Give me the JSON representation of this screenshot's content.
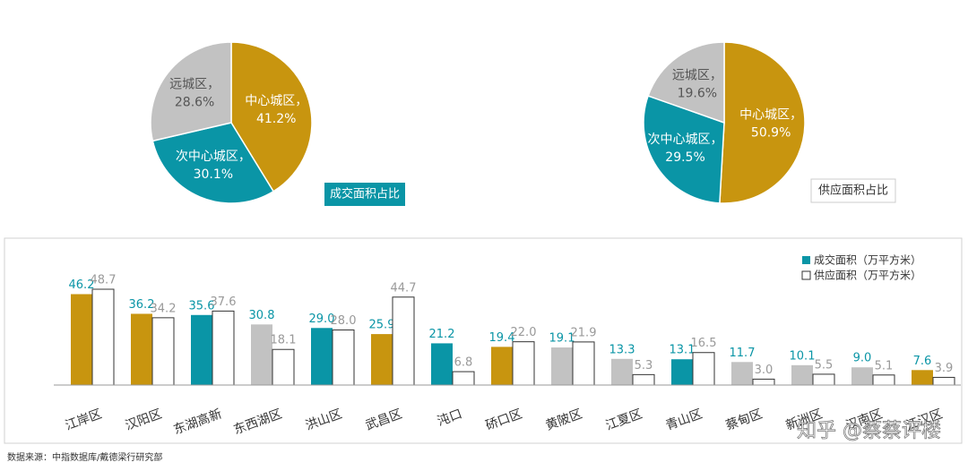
{
  "chart_data": [
    {
      "type": "pie",
      "title": "成交面积占比",
      "categories": [
        "中心城区，",
        "次中心城区，",
        "远城区，"
      ],
      "values": [
        41.2,
        30.1,
        28.6
      ],
      "value_labels": [
        "41.2%",
        "30.1%",
        "28.6%"
      ],
      "colors": [
        "#c8950f",
        "#0a95a6",
        "#c2c2c2"
      ]
    },
    {
      "type": "pie",
      "title": "供应面积占比",
      "categories": [
        "中心城区，",
        "次中心城区，",
        "远城区，"
      ],
      "values": [
        50.9,
        29.5,
        19.6
      ],
      "value_labels": [
        "50.9%",
        "29.5%",
        "19.6%"
      ],
      "colors": [
        "#c8950f",
        "#0a95a6",
        "#c2c2c2"
      ]
    },
    {
      "type": "bar",
      "categories": [
        "江岸区",
        "汉阳区",
        "东湖高新",
        "东西湖区",
        "洪山区",
        "武昌区",
        "沌口",
        "硚口区",
        "黄陂区",
        "江夏区",
        "青山区",
        "蔡甸区",
        "新洲区",
        "汉南区",
        "江汉区"
      ],
      "series": [
        {
          "name": "成交面积（万平方米）",
          "color": "#0a95a6",
          "colors": [
            "#c8950f",
            "#c8950f",
            "#0a95a6",
            "#c2c2c2",
            "#0a95a6",
            "#c8950f",
            "#0a95a6",
            "#c8950f",
            "#c2c2c2",
            "#c2c2c2",
            "#0a95a6",
            "#c2c2c2",
            "#c2c2c2",
            "#c2c2c2",
            "#c8950f"
          ],
          "values": [
            46.2,
            36.2,
            35.6,
            30.8,
            29.0,
            25.9,
            21.2,
            19.4,
            19.1,
            13.3,
            13.1,
            11.7,
            10.1,
            9.0,
            7.6
          ],
          "value_labels": [
            "46.2",
            "36.2",
            "35.6",
            "30.8",
            "29.0",
            "25.9",
            "21.2",
            "19.4",
            "19.1",
            "13.3",
            "13.1",
            "11.7",
            "10.1",
            "9.0",
            "7.6"
          ]
        },
        {
          "name": "供应面积（万平方米）",
          "color": "#ffffff",
          "values": [
            48.7,
            34.2,
            37.6,
            18.1,
            28.0,
            44.7,
            6.8,
            22.0,
            21.9,
            5.3,
            16.5,
            3.0,
            5.5,
            5.1,
            3.9
          ],
          "value_labels": [
            "48.7",
            "34.2",
            "37.6",
            "18.1",
            "28.0",
            "44.7",
            "6.8",
            "22.0",
            "21.9",
            "5.3",
            "16.5",
            "3.0",
            "5.5",
            "5.1",
            "3.9"
          ]
        }
      ],
      "legend": "upper right",
      "source": "数据来源：中指数据库/戴德梁行研究部",
      "watermark": "知乎 @蔡蔡评楼"
    }
  ]
}
